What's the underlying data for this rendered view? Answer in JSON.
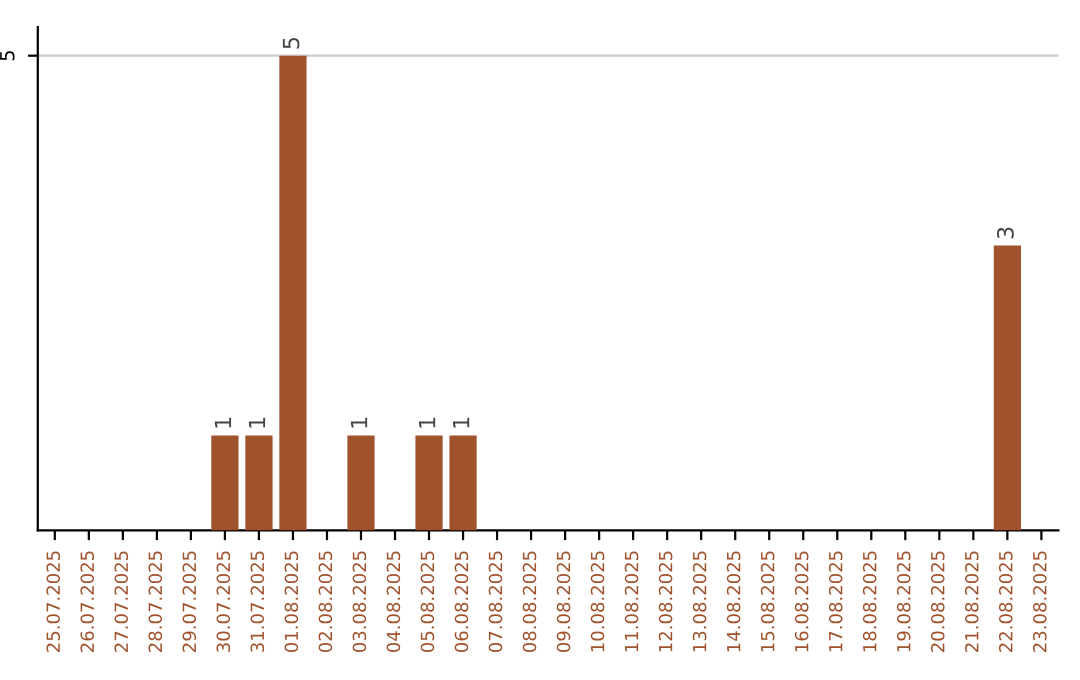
{
  "chart_data": {
    "type": "bar",
    "categories": [
      "25.07.2025",
      "26.07.2025",
      "27.07.2025",
      "28.07.2025",
      "29.07.2025",
      "30.07.2025",
      "31.07.2025",
      "01.08.2025",
      "02.08.2025",
      "03.08.2025",
      "04.08.2025",
      "05.08.2025",
      "06.08.2025",
      "07.08.2025",
      "08.08.2025",
      "09.08.2025",
      "10.08.2025",
      "11.08.2025",
      "12.08.2025",
      "13.08.2025",
      "14.08.2025",
      "15.08.2025",
      "16.08.2025",
      "17.08.2025",
      "18.08.2025",
      "19.08.2025",
      "20.08.2025",
      "21.08.2025",
      "22.08.2025",
      "23.08.2025"
    ],
    "values": [
      0,
      0,
      0,
      0,
      0,
      1,
      1,
      5,
      0,
      1,
      0,
      1,
      1,
      0,
      0,
      0,
      0,
      0,
      0,
      0,
      0,
      0,
      0,
      0,
      0,
      0,
      0,
      0,
      3,
      0
    ],
    "value_labels": [
      null,
      null,
      null,
      null,
      null,
      "1",
      "1",
      "5",
      null,
      "1",
      null,
      "1",
      "1",
      null,
      null,
      null,
      null,
      null,
      null,
      null,
      null,
      null,
      null,
      null,
      null,
      null,
      null,
      null,
      "3",
      null
    ],
    "color": "#a0522d",
    "ylim": [
      0,
      5.3
    ],
    "yticks": [
      5
    ],
    "grid": "y"
  }
}
